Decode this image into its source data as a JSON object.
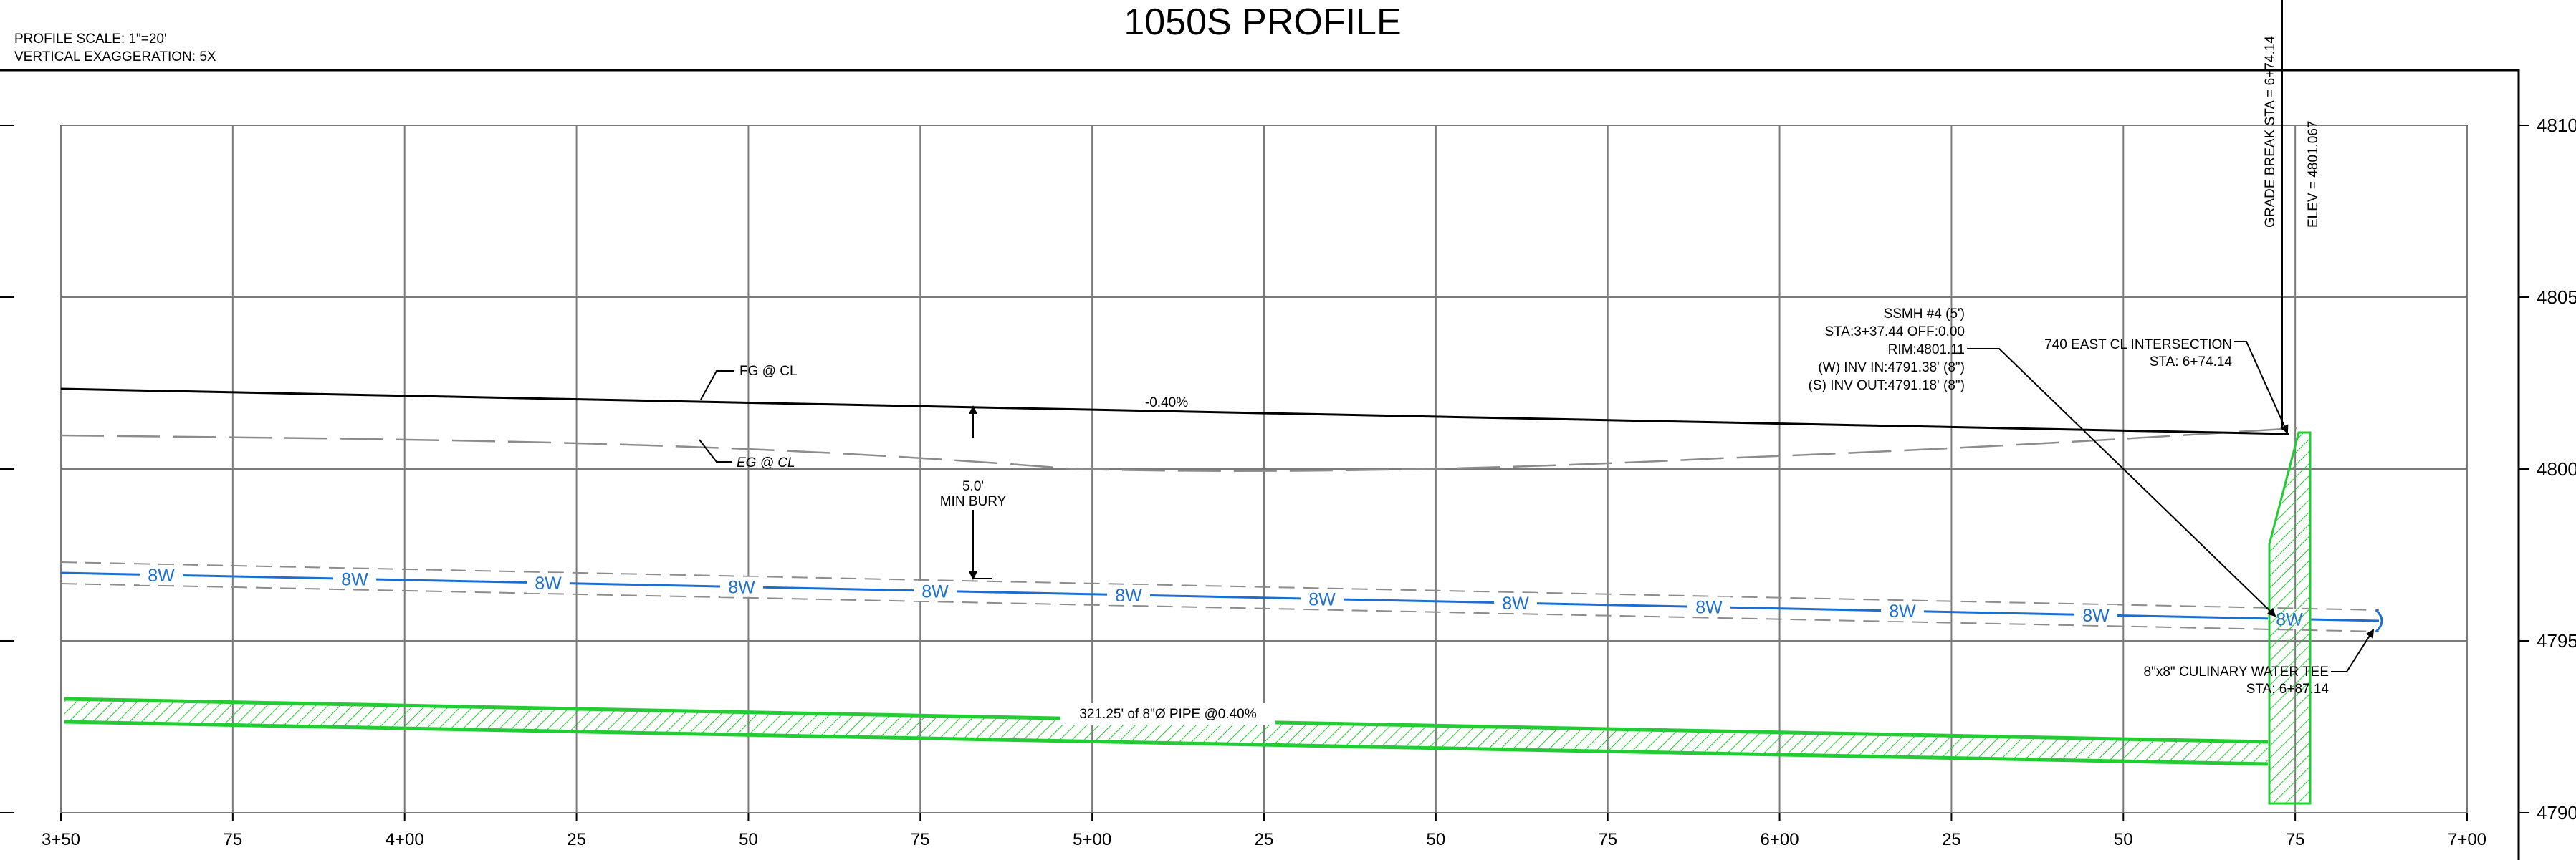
{
  "title": "1050S PROFILE",
  "header": {
    "scale": "PROFILE SCALE: 1\"=20'",
    "exaggeration": "VERTICAL EXAGGERATION: 5X"
  },
  "colors": {
    "line": "#000000",
    "grid": "#7a7a7a",
    "water": "#1c6fd1",
    "sewer": "#22cc33",
    "existing": "#8c8c8c"
  },
  "axes": {
    "station_labels": [
      "3+50",
      "75",
      "4+00",
      "25",
      "50",
      "75",
      "5+00",
      "25",
      "50",
      "75",
      "6+00",
      "25",
      "50",
      "75",
      "7+00"
    ],
    "elevation_labels": [
      "4810",
      "4805",
      "4800",
      "4795",
      "4790"
    ]
  },
  "labels": {
    "fg": "FG @ CL",
    "eg": "EG @ CL",
    "grade": "-0.40%",
    "bury_depth": "5.0'",
    "bury_text": "MIN BURY",
    "water_tag": "8W",
    "pipe": "321.25' of 8\"Ø PIPE @0.40%",
    "grade_break": "GRADE BREAK STA = 6+74.14",
    "grade_break_elev": "ELEV = 4801.067",
    "manhole": [
      "SSMH #4 (5')",
      "STA:3+37.44 OFF:0.00",
      "RIM:4801.11",
      "(W) INV IN:4791.38' (8\")",
      "(S) INV OUT:4791.18' (8\")"
    ],
    "intersection_name": "740 EAST CL INTERSECTION",
    "intersection_sta": "STA: 6+74.14",
    "tee_name": "8\"x8\" CULINARY WATER TEE",
    "tee_sta": "STA: 6+87.14"
  }
}
